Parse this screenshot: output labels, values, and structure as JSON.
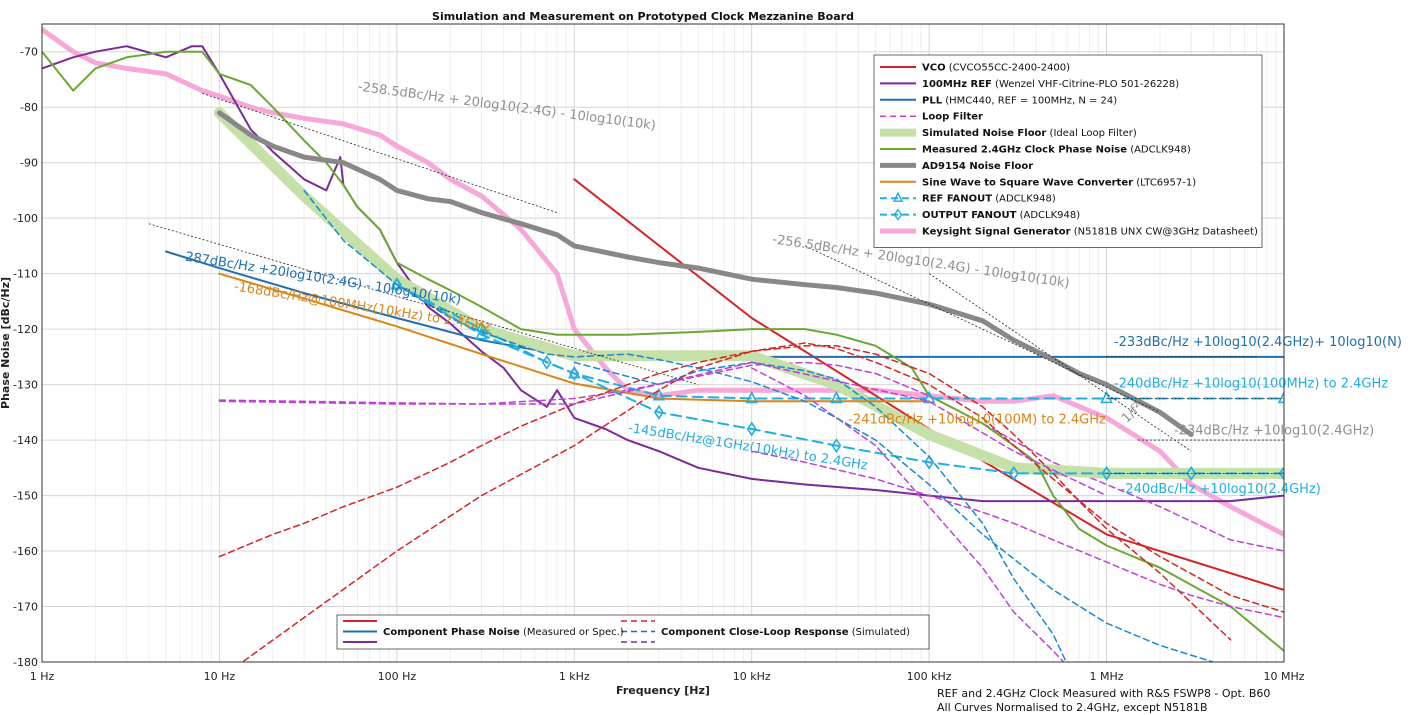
{
  "chart_data": {
    "type": "line",
    "title": "Simulation and Measurement on Prototyped Clock Mezzanine Board",
    "xlabel": "Frequency [Hz]",
    "ylabel": "Phase Noise [dBc/Hz]",
    "xscale": "log",
    "xlim": [
      1,
      10000000
    ],
    "ylim": [
      -180,
      -65
    ],
    "grid": true,
    "legend_placement": "top-right",
    "x_ticks": [
      {
        "v": 1,
        "label": "1 Hz"
      },
      {
        "v": 10,
        "label": "10 Hz"
      },
      {
        "v": 100,
        "label": "100 Hz"
      },
      {
        "v": 1000,
        "label": "1 kHz"
      },
      {
        "v": 10000,
        "label": "10 kHz"
      },
      {
        "v": 100000,
        "label": "100 kHz"
      },
      {
        "v": 1000000,
        "label": "1 MHz"
      },
      {
        "v": 10000000,
        "label": "10 MHz"
      }
    ],
    "y_ticks": [
      {
        "v": -70,
        "label": "-70"
      },
      {
        "v": -80,
        "label": "-80"
      },
      {
        "v": -90,
        "label": "-90"
      },
      {
        "v": -100,
        "label": "-100"
      },
      {
        "v": -110,
        "label": "-110"
      },
      {
        "v": -120,
        "label": "-120"
      },
      {
        "v": -130,
        "label": "-130"
      },
      {
        "v": -140,
        "label": "-140"
      },
      {
        "v": -150,
        "label": "-150"
      },
      {
        "v": -160,
        "label": "-160"
      },
      {
        "v": -170,
        "label": "-170"
      },
      {
        "v": -180,
        "label": "-180"
      }
    ],
    "series": [
      {
        "legend_bold": "Keysight Signal Generator",
        "legend_normal": " (N5181B UNX CW@3GHz Datasheet)",
        "color": "#f7a8d8",
        "width": 5,
        "dash": "",
        "x": [
          1,
          1.5,
          2,
          3,
          5,
          8,
          10,
          15,
          20,
          30,
          50,
          80,
          100,
          150,
          200,
          300,
          500,
          800,
          1000,
          1500,
          2000,
          3000,
          5000,
          10000,
          20000,
          30000,
          50000,
          100000,
          200000,
          300000,
          500000,
          1000000,
          2000000,
          3000000,
          5000000,
          10000000
        ],
        "y": [
          -66,
          -70,
          -72,
          -73,
          -74,
          -77,
          -78,
          -80,
          -81,
          -82,
          -83,
          -85,
          -87,
          -90,
          -93,
          -96,
          -102,
          -110,
          -120,
          -127,
          -131,
          -132,
          -131,
          -131,
          -131,
          -131,
          -131,
          -132,
          -133,
          -133,
          -132,
          -136,
          -142,
          -148,
          -152,
          -157
        ]
      },
      {
        "legend_bold": "VCO",
        "legend_normal": " (CVCO55CC-2400-2400)",
        "color": "#d42525",
        "width": 2,
        "dash": "",
        "x": [
          1000,
          10000,
          100000,
          1000000,
          10000000
        ],
        "y": [
          -93,
          -118,
          -138,
          -157,
          -167
        ]
      },
      {
        "legend_bold": "100MHz REF",
        "legend_normal": " (Wenzel VHF-Citrine-PLO 501-26228)",
        "color": "#7a2a9a",
        "width": 2,
        "dash": "",
        "x": [
          1,
          1.5,
          2,
          3,
          5,
          7,
          8,
          10,
          15,
          20,
          30,
          40,
          48,
          50,
          60,
          80,
          100,
          150,
          200,
          300,
          400,
          500,
          700,
          800,
          1000,
          1500,
          2000,
          3000,
          5000,
          10000,
          20000,
          50000,
          100000,
          200000,
          300000,
          500000,
          1000000,
          2000000,
          5000000,
          10000000
        ],
        "y": [
          -73,
          -71,
          -70,
          -69,
          -71,
          -69,
          -69,
          -74,
          -84,
          -88,
          -93,
          -95,
          -89,
          -94,
          -98,
          -102,
          -108,
          -116,
          -119,
          -124,
          -127,
          -131,
          -134,
          -131,
          -136,
          -138,
          -140,
          -142,
          -145,
          -147,
          -148,
          -149,
          -150,
          -151,
          -151,
          -151,
          -151,
          -151,
          -151,
          -150
        ]
      },
      {
        "legend_bold": "PLL",
        "legend_normal": " (HMC440, REF = 100MHz, N = 24)",
        "color": "#1f6fb0",
        "width": 2,
        "dash": "",
        "x": [
          5,
          10,
          30,
          100,
          300,
          1000,
          3000,
          10000,
          100000,
          1000000,
          10000000
        ],
        "y": [
          -106,
          -109,
          -113.5,
          -118,
          -122,
          -125,
          -125,
          -125,
          -125,
          -125,
          -125
        ]
      },
      {
        "legend_bold": "Loop Filter",
        "legend_normal": "",
        "color": "#c040d8",
        "width": 1.5,
        "dash": "6,4",
        "x": [
          10,
          30,
          100,
          300,
          1000,
          2000,
          5000,
          10000,
          20000,
          30000,
          50000,
          100000,
          200000,
          500000,
          1000000,
          2000000,
          5000000,
          10000000
        ],
        "y": [
          -132.8,
          -133,
          -133.3,
          -133.5,
          -132.5,
          -131,
          -128.5,
          -126.5,
          -126,
          -126.5,
          -128,
          -132,
          -137,
          -144,
          -148,
          -152,
          -158,
          -160
        ]
      },
      {
        "legend_bold": "Simulated Noise Floor",
        "legend_normal": " (Ideal Loop Filter)",
        "color": "#c5e0a8",
        "width": 11,
        "dash": "",
        "x": [
          10,
          30,
          100,
          300,
          1000,
          3000,
          10000,
          30000,
          100000,
          300000,
          1000000,
          3000000,
          10000000
        ],
        "y": [
          -81,
          -96,
          -111,
          -120,
          -124.8,
          -124.8,
          -124.8,
          -130,
          -139,
          -145,
          -146,
          -146,
          -146
        ]
      },
      {
        "legend_bold": "Measured 2.4GHz Clock Phase Noise",
        "legend_normal": " (ADCLK948)",
        "color": "#6aa833",
        "width": 2,
        "dash": "",
        "x": [
          1,
          1.5,
          2,
          3,
          5,
          8,
          10,
          15,
          20,
          30,
          40,
          50,
          60,
          80,
          100,
          150,
          200,
          300,
          500,
          800,
          1000,
          2000,
          5000,
          10000,
          20000,
          30000,
          50000,
          80000,
          100000,
          200000,
          300000,
          400000,
          500000,
          700000,
          1000000,
          2000000,
          5000000,
          10000000
        ],
        "y": [
          -70,
          -77,
          -73,
          -71,
          -70,
          -70,
          -74,
          -76,
          -80,
          -86,
          -90,
          -94,
          -98,
          -102,
          -108,
          -111,
          -113,
          -116,
          -120,
          -121,
          -121,
          -121,
          -120.5,
          -120,
          -120,
          -121,
          -123,
          -127,
          -132,
          -137,
          -141,
          -144,
          -150,
          -156,
          -159,
          -163,
          -170,
          -178
        ]
      },
      {
        "legend_bold": "AD9154 Noise Floor",
        "legend_normal": "",
        "color": "#888888",
        "width": 5,
        "dash": "",
        "x": [
          10,
          15,
          20,
          30,
          50,
          80,
          100,
          150,
          200,
          300,
          500,
          800,
          1000,
          2000,
          3000,
          5000,
          10000,
          20000,
          30000,
          50000,
          100000,
          200000,
          300000,
          500000,
          700000,
          1000000,
          2000000,
          3000000
        ],
        "y": [
          -81,
          -85,
          -87,
          -89,
          -90,
          -93,
          -95,
          -96.5,
          -97,
          -99,
          -101,
          -103,
          -105,
          -107,
          -108,
          -109,
          -111,
          -112,
          -112.5,
          -113.5,
          -115.5,
          -118.5,
          -122,
          -125.5,
          -128,
          -130,
          -135,
          -139
        ]
      },
      {
        "legend_bold": "Sine Wave to Square Wave Converter",
        "legend_normal": " (LTC6957-1)",
        "color": "#d98518",
        "width": 2,
        "dash": "",
        "x": [
          10,
          30,
          100,
          300,
          1000,
          3000,
          10000,
          30000,
          100000
        ],
        "y": [
          -110,
          -114.5,
          -119.5,
          -124.5,
          -129.8,
          -132.5,
          -133,
          -133,
          -133
        ]
      },
      {
        "legend_bold": "REF FANOUT",
        "legend_normal": " (ADCLK948)",
        "color": "#22aee0",
        "width": 2,
        "dash": "10,6",
        "marker": "triangle",
        "x": [
          100,
          300,
          1000,
          3000,
          10000,
          30000,
          100000,
          1000000,
          10000000
        ],
        "y": [
          -112,
          -121,
          -128,
          -132,
          -132.5,
          -132.5,
          -132.5,
          -132.5,
          -132.5
        ]
      },
      {
        "legend_bold": "OUTPUT FANOUT",
        "legend_normal": " (ADCLK948)",
        "color": "#22aee0",
        "width": 2,
        "dash": "10,6",
        "marker": "diamond",
        "x": [
          100,
          300,
          700,
          1000,
          3000,
          10000,
          30000,
          100000,
          300000,
          1000000,
          3000000,
          10000000
        ],
        "y": [
          -112,
          -120,
          -126,
          -128,
          -135,
          -138,
          -141,
          -144,
          -146,
          -146,
          -146,
          -146
        ]
      },
      {
        "legend_bold": "",
        "legend_normal": "",
        "color": "#c040d8",
        "width": 1.5,
        "dash": "6,4",
        "x": [
          10000,
          20000,
          50000,
          100000,
          200000,
          300000,
          500000,
          1000000,
          2000000,
          3000000,
          5000000,
          10000000
        ],
        "y": [
          -142,
          -144,
          -147,
          -150,
          -153,
          -155,
          -158,
          -162,
          -166,
          -168,
          -170,
          -172
        ]
      },
      {
        "legend_bold": "",
        "legend_normal": "",
        "color": "#1a8ad0",
        "width": 1.5,
        "dash": "6,4",
        "x": [
          1000,
          3000,
          5000,
          10000,
          20000,
          30000,
          50000,
          100000,
          200000,
          300000,
          500000,
          700000,
          1000000
        ],
        "y": [
          -126,
          -130,
          -127.5,
          -126,
          -127.5,
          -129,
          -134,
          -143,
          -155,
          -165,
          -175,
          -185,
          -195
        ]
      },
      {
        "legend_bold": "",
        "legend_normal": "",
        "color": "#d42525",
        "width": 1.5,
        "dash": "6,4",
        "x": [
          10,
          20,
          30,
          50,
          100,
          200,
          300,
          500,
          1000,
          2000,
          3000,
          5000,
          10000,
          20000,
          30000,
          50000,
          100000,
          200000,
          300000,
          500000,
          1000000,
          2000000,
          5000000,
          10000000
        ],
        "y": [
          -161,
          -157,
          -155,
          -152,
          -148.5,
          -144,
          -141,
          -137.5,
          -133.5,
          -130,
          -128,
          -126,
          -124,
          -122.5,
          -123.5,
          -126,
          -130,
          -136,
          -141,
          -147,
          -155,
          -161,
          -168,
          -171
        ]
      },
      {
        "legend_bold": "",
        "legend_normal": "",
        "color": "#c040d8",
        "width": 1.5,
        "dash": "6,4",
        "x": [
          10000,
          20000,
          50000,
          100000,
          200000,
          300000,
          500000,
          700000,
          1000000
        ],
        "y": [
          -127,
          -132,
          -141,
          -152,
          -163,
          -171,
          -178,
          -183,
          -190
        ]
      },
      {
        "legend_bold": "",
        "legend_normal": "",
        "color": "#1a8ad0",
        "width": 1.5,
        "dash": "6,4",
        "x": [
          30,
          50,
          100,
          200,
          300,
          500,
          700,
          1000,
          2000,
          3000,
          5000,
          10000,
          20000,
          30000,
          50000,
          100000,
          200000,
          500000,
          1000000,
          2000000,
          5000000,
          10000000
        ],
        "y": [
          -95,
          -104,
          -112,
          -118,
          -120.5,
          -123,
          -124.5,
          -125,
          -124.5,
          -125.5,
          -127,
          -129.5,
          -133,
          -136,
          -140,
          -148,
          -157,
          -167,
          -173,
          -177,
          -181,
          -185
        ]
      },
      {
        "legend_bold": "",
        "legend_normal": "",
        "color": "#d42525",
        "width": 1.5,
        "dash": "6,4",
        "x": [
          10,
          30,
          100,
          300,
          1000,
          3000,
          5000,
          10000,
          20000,
          30000,
          50000,
          100000,
          200000,
          300000,
          500000,
          700000,
          1000000,
          2000000,
          5000000
        ],
        "y": [
          -183,
          -172,
          -160,
          -150,
          -141,
          -131,
          -127,
          -124,
          -123,
          -123,
          -124.5,
          -128,
          -134,
          -139,
          -146,
          -151,
          -156,
          -164,
          -176
        ]
      },
      {
        "legend_bold": "",
        "legend_normal": "",
        "color": "#c040d8",
        "width": 1.5,
        "dash": "6,4",
        "x": [
          10,
          100,
          1000,
          10000,
          100000,
          300000,
          1000000
        ],
        "y": [
          -133,
          -133.5,
          -133.5,
          -126,
          -133,
          -142,
          -150
        ]
      }
    ],
    "annotations": [
      {
        "text": "-258.5dBc/Hz + 20log10(2.4G) - 10log10(10k)",
        "color": "#909090",
        "x": 60,
        "y": -77,
        "rot": 7.5
      },
      {
        "text": "-256.5dBc/Hz + 20log10(2.4G) - 10log10(10k)",
        "color": "#909090",
        "x": 13000,
        "y": -104.5,
        "rot": 8.5
      },
      {
        "text": "-287dBc/Hz +20log10(2.4G) - 10log10(10k)",
        "color": "#1f6fb0",
        "x": 6,
        "y": -107.5,
        "rot": 9
      },
      {
        "text": "-168dBc/Hz@100MHz(10kHz) to 2.4GHz",
        "color": "#d98518",
        "x": 12,
        "y": -113,
        "rot": 9
      },
      {
        "text": "-145dBc/Hz@1GHz(10kHz) to 2.4GHz",
        "color": "#22aee0",
        "x": 2000,
        "y": -138.5,
        "rot": 9
      },
      {
        "text": "-241dBc/Hz +10log10(100M) to 2.4GHz",
        "color": "#d98518",
        "x": 35000,
        "y": -137,
        "rot": 0
      },
      {
        "text": "-233dBc/Hz +10log10(2.4GHz)+ 10log10(N)",
        "color": "#1f6fb0",
        "x": 1100000,
        "y": -123,
        "rot": 0
      },
      {
        "text": "-240dBc/Hz +10log10(100MHz) to 2.4GHz",
        "color": "#22aee0",
        "x": 1100000,
        "y": -130.5,
        "rot": 0
      },
      {
        "text": "-234dBc/Hz +10log10(2.4GHz)",
        "color": "#909090",
        "x": 2400000,
        "y": -139,
        "rot": 0
      },
      {
        "text": "-240dBc/Hz +10log10(2.4GHz)",
        "color": "#22aee0",
        "x": 1200000,
        "y": -149.5,
        "rot": 0
      },
      {
        "text": "1/f²",
        "color": "#909090",
        "x": 1300000,
        "y": -137,
        "rot": -45
      }
    ],
    "bottom_legend": {
      "solid_label_bold": "Component Phase Noise",
      "solid_label_normal": " (Measured or Spec.)",
      "dashed_label_bold": "Component Close-Loop Response",
      "dashed_label_normal": " (Simulated)",
      "colors": [
        "#d42525",
        "#1f6fb0",
        "#7a2a9a"
      ]
    },
    "footnote_lines": [
      "REF and 2.4GHz Clock Measured with R&S FSWP8 - Opt. B60",
      "All Curves Normalised to 2.4GHz, except N5181B"
    ]
  }
}
